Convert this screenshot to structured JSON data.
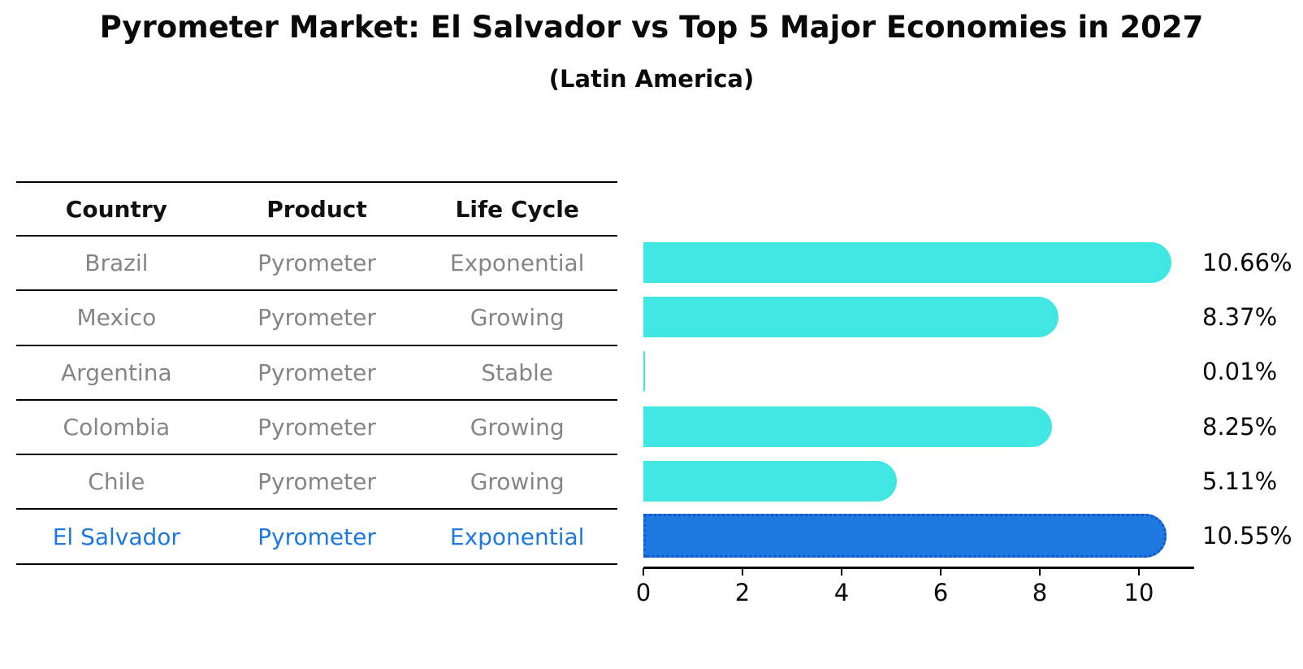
{
  "title": "Pyrometer Market: El Salvador vs Top 5 Major Economies in 2027",
  "subtitle": "(Latin America)",
  "table": {
    "headers": [
      "Country",
      "Product",
      "Life Cycle"
    ],
    "rows": [
      {
        "country": "Brazil",
        "product": "Pyrometer",
        "life_cycle": "Exponential",
        "highlight": false
      },
      {
        "country": "Mexico",
        "product": "Pyrometer",
        "life_cycle": "Growing",
        "highlight": false
      },
      {
        "country": "Argentina",
        "product": "Pyrometer",
        "life_cycle": "Stable",
        "highlight": false
      },
      {
        "country": "Colombia",
        "product": "Pyrometer",
        "life_cycle": "Growing",
        "highlight": false
      },
      {
        "country": "Chile",
        "product": "Pyrometer",
        "life_cycle": "Growing",
        "highlight": false
      },
      {
        "country": "El Salvador",
        "product": "Pyrometer",
        "life_cycle": "Exponential",
        "highlight": true
      }
    ]
  },
  "chart_data": {
    "type": "bar",
    "orientation": "horizontal",
    "title": "Pyrometer Market: El Salvador vs Top 5 Major Economies in 2027",
    "subtitle": "(Latin America)",
    "categories": [
      "Brazil",
      "Mexico",
      "Argentina",
      "Colombia",
      "Chile",
      "El Salvador"
    ],
    "values": [
      10.66,
      8.37,
      0.01,
      8.25,
      5.11,
      10.55
    ],
    "value_labels": [
      "10.66%",
      "8.37%",
      "0.01%",
      "8.25%",
      "5.11%",
      "10.55%"
    ],
    "x_ticks": [
      0,
      2,
      4,
      6,
      8,
      10
    ],
    "xlim": [
      0,
      11.1
    ],
    "xlabel": "",
    "ylabel": "",
    "grid": false,
    "legend": false,
    "highlight_index": 5
  },
  "colors": {
    "bar": "#40E6E1",
    "highlight_bar": "#1E78E1",
    "highlight_border": "#1556C8",
    "table_text": "#858585",
    "header_text": "#111111",
    "highlight_text": "#1E78E1",
    "axis": "#000000",
    "background": "#FFFFFF"
  }
}
